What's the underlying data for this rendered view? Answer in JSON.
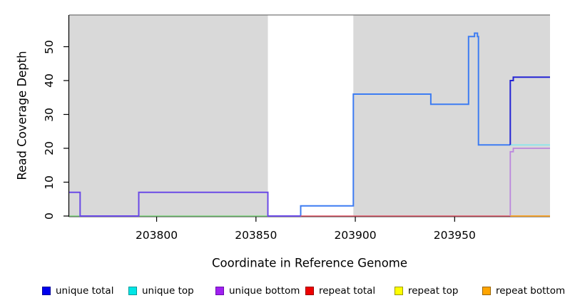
{
  "chart_data": {
    "type": "line",
    "title": "",
    "xlabel": "Coordinate in Reference Genome",
    "ylabel": "Read Coverage Depth",
    "xlim": [
      203756,
      203998
    ],
    "ylim": [
      0,
      59.5
    ],
    "x_ticks": [
      203800,
      203850,
      203900,
      203950
    ],
    "y_ticks": [
      0,
      10,
      20,
      30,
      40,
      50
    ],
    "grid": false,
    "plot_background": "#ffffff",
    "shading": {
      "color": "#d9d9d9",
      "regions": [
        [
          203756,
          203856
        ],
        [
          203899,
          203998
        ]
      ],
      "gap": [
        203856,
        203899
      ]
    },
    "series": [
      {
        "name": "baseline-unique-left",
        "color": "#82d882",
        "width": 1.6,
        "points": [
          [
            203756,
            0
          ],
          [
            203856,
            0
          ]
        ]
      },
      {
        "name": "unique-total-main",
        "color": "#3d7cf2",
        "width": 2,
        "points": [
          [
            203856,
            0
          ],
          [
            203872.5,
            0
          ],
          [
            203872.5,
            3
          ],
          [
            203899,
            3
          ],
          [
            203899,
            36
          ],
          [
            203938,
            36
          ],
          [
            203938,
            33
          ],
          [
            203957,
            33
          ],
          [
            203957,
            53
          ],
          [
            203960,
            53
          ],
          [
            203960,
            54
          ],
          [
            203961.5,
            54
          ],
          [
            203961.5,
            53
          ],
          [
            203962,
            53
          ],
          [
            203962,
            21
          ],
          [
            203978,
            21
          ]
        ]
      },
      {
        "name": "unique-bottom-left",
        "color": "#6a4ae6",
        "width": 2,
        "points": [
          [
            203756,
            7
          ],
          [
            203761.5,
            7
          ],
          [
            203761.5,
            0
          ],
          [
            203791,
            0
          ],
          [
            203791,
            7
          ],
          [
            203856,
            7
          ],
          [
            203856,
            0
          ],
          [
            203872.5,
            0
          ]
        ]
      },
      {
        "name": "repeat-total",
        "color": "#e35a6b",
        "width": 1.6,
        "points": [
          [
            203872.5,
            0
          ],
          [
            203998,
            0
          ]
        ]
      },
      {
        "name": "unique-bottom-right",
        "color": "#bb87dd",
        "width": 1.8,
        "points": [
          [
            203978,
            0
          ],
          [
            203978,
            19
          ],
          [
            203979.5,
            19
          ],
          [
            203979.5,
            20
          ],
          [
            203998,
            20
          ]
        ]
      },
      {
        "name": "unique-top-right",
        "color": "#8fe6ea",
        "width": 1.8,
        "points": [
          [
            203978,
            21
          ],
          [
            203998,
            21
          ]
        ]
      },
      {
        "name": "repeat-bottom-right",
        "color": "#f9a825",
        "width": 1.8,
        "points": [
          [
            203978,
            0
          ],
          [
            203998,
            0
          ]
        ]
      },
      {
        "name": "unique-total-right",
        "color": "#2424d4",
        "width": 2,
        "points": [
          [
            203978,
            21
          ],
          [
            203978,
            40
          ],
          [
            203979.5,
            40
          ],
          [
            203979.5,
            41
          ],
          [
            203998,
            41
          ]
        ]
      }
    ],
    "legend": {
      "position": "bottom",
      "items": [
        {
          "label": "unique total",
          "fill": "#0000ee",
          "border": "#00009a"
        },
        {
          "label": "unique top",
          "fill": "#00e6e6",
          "border": "#009a9a"
        },
        {
          "label": "unique bottom",
          "fill": "#a020f0",
          "border": "#6a0dad"
        },
        {
          "label": "repeat total",
          "fill": "#ee0000",
          "border": "#9a0000"
        },
        {
          "label": "repeat top",
          "fill": "#ffff00",
          "border": "#9a9a00"
        },
        {
          "label": "repeat bottom",
          "fill": "#ffa500",
          "border": "#9a6400"
        }
      ]
    }
  }
}
